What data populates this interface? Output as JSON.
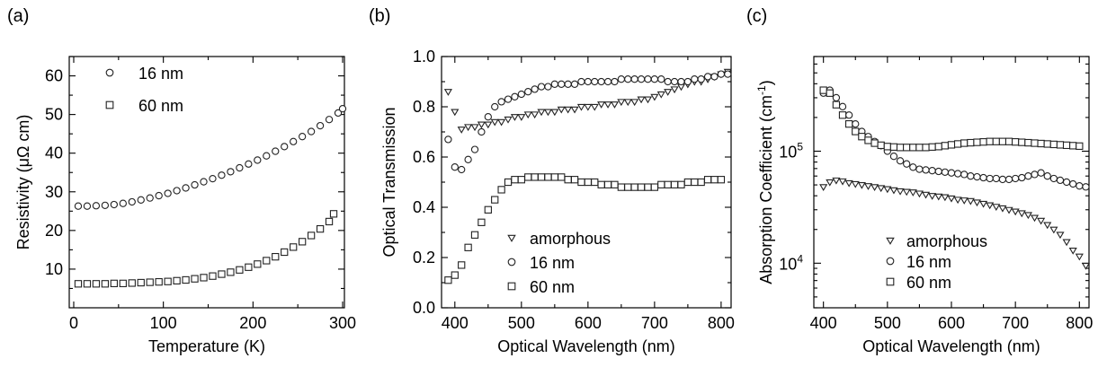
{
  "chart_data": [
    {
      "panel": "(a)",
      "type": "scatter",
      "xlabel": "Temperature (K)",
      "ylabel": "Resistivity (μΩ cm)",
      "xlim": [
        -5,
        302
      ],
      "ylim": [
        0,
        65
      ],
      "xticks": [
        0,
        100,
        200,
        300
      ],
      "yticks": [
        10,
        20,
        30,
        40,
        50,
        60
      ],
      "yscale": "linear",
      "legend_position": "top-left",
      "series": [
        {
          "name": "16 nm",
          "marker": "circle",
          "x": [
            5,
            15,
            25,
            35,
            45,
            55,
            65,
            75,
            85,
            95,
            105,
            115,
            125,
            135,
            145,
            155,
            165,
            175,
            185,
            195,
            205,
            215,
            225,
            235,
            245,
            255,
            265,
            275,
            285,
            295,
            300
          ],
          "y": [
            26.3,
            26.3,
            26.4,
            26.5,
            26.7,
            27.0,
            27.4,
            27.9,
            28.4,
            29.0,
            29.6,
            30.3,
            31.0,
            31.8,
            32.6,
            33.4,
            34.3,
            35.2,
            36.2,
            37.2,
            38.2,
            39.3,
            40.5,
            41.7,
            43.0,
            44.3,
            45.6,
            47.1,
            48.7,
            50.4,
            51.5
          ]
        },
        {
          "name": "60 nm",
          "marker": "square",
          "x": [
            5,
            15,
            25,
            35,
            45,
            55,
            65,
            75,
            85,
            95,
            105,
            115,
            125,
            135,
            145,
            155,
            165,
            175,
            185,
            195,
            205,
            215,
            225,
            235,
            245,
            255,
            265,
            275,
            285,
            290
          ],
          "y": [
            6.2,
            6.2,
            6.2,
            6.2,
            6.3,
            6.3,
            6.4,
            6.5,
            6.6,
            6.7,
            6.8,
            7.0,
            7.2,
            7.5,
            7.8,
            8.2,
            8.7,
            9.2,
            9.8,
            10.5,
            11.3,
            12.2,
            13.2,
            14.4,
            15.7,
            17.1,
            18.7,
            20.4,
            22.3,
            24.3
          ]
        }
      ]
    },
    {
      "panel": "(b)",
      "type": "scatter",
      "xlabel": "Optical Wavelength (nm)",
      "ylabel": "Optical Transmission",
      "xlim": [
        380,
        815
      ],
      "ylim": [
        0,
        1.0
      ],
      "xticks": [
        400,
        500,
        600,
        700,
        800
      ],
      "yticks": [
        0.0,
        0.2,
        0.4,
        0.6,
        0.8,
        1.0
      ],
      "yscale": "linear",
      "legend_position": "bottom-center",
      "series": [
        {
          "name": "amorphous",
          "marker": "triangle-down",
          "x": [
            390,
            400,
            410,
            420,
            430,
            440,
            450,
            460,
            470,
            480,
            490,
            500,
            510,
            520,
            530,
            540,
            550,
            560,
            570,
            580,
            590,
            600,
            610,
            620,
            630,
            640,
            650,
            660,
            670,
            680,
            690,
            700,
            710,
            720,
            730,
            740,
            750,
            760,
            770,
            780,
            790,
            800,
            810
          ],
          "y": [
            0.86,
            0.78,
            0.71,
            0.72,
            0.72,
            0.73,
            0.73,
            0.74,
            0.74,
            0.75,
            0.76,
            0.76,
            0.77,
            0.77,
            0.78,
            0.78,
            0.78,
            0.79,
            0.79,
            0.79,
            0.8,
            0.8,
            0.8,
            0.81,
            0.81,
            0.81,
            0.82,
            0.82,
            0.82,
            0.83,
            0.83,
            0.84,
            0.85,
            0.86,
            0.87,
            0.88,
            0.89,
            0.9,
            0.9,
            0.91,
            0.92,
            0.93,
            0.94
          ]
        },
        {
          "name": "16 nm",
          "marker": "circle",
          "x": [
            390,
            400,
            410,
            420,
            430,
            440,
            450,
            460,
            470,
            480,
            490,
            500,
            510,
            520,
            530,
            540,
            550,
            560,
            570,
            580,
            590,
            600,
            610,
            620,
            630,
            640,
            650,
            660,
            670,
            680,
            690,
            700,
            710,
            720,
            730,
            740,
            750,
            760,
            770,
            780,
            790,
            800,
            810
          ],
          "y": [
            0.67,
            0.56,
            0.55,
            0.59,
            0.63,
            0.7,
            0.76,
            0.8,
            0.82,
            0.83,
            0.84,
            0.85,
            0.86,
            0.87,
            0.88,
            0.88,
            0.89,
            0.89,
            0.89,
            0.89,
            0.9,
            0.9,
            0.9,
            0.9,
            0.9,
            0.9,
            0.91,
            0.91,
            0.91,
            0.91,
            0.91,
            0.91,
            0.91,
            0.9,
            0.9,
            0.9,
            0.9,
            0.91,
            0.91,
            0.92,
            0.92,
            0.93,
            0.93
          ]
        },
        {
          "name": "60 nm",
          "marker": "square",
          "x": [
            390,
            400,
            410,
            420,
            430,
            440,
            450,
            460,
            470,
            480,
            490,
            500,
            510,
            520,
            530,
            540,
            550,
            560,
            570,
            580,
            590,
            600,
            610,
            620,
            630,
            640,
            650,
            660,
            670,
            680,
            690,
            700,
            710,
            720,
            730,
            740,
            750,
            760,
            770,
            780,
            790,
            800
          ],
          "y": [
            0.11,
            0.13,
            0.17,
            0.24,
            0.29,
            0.34,
            0.39,
            0.43,
            0.47,
            0.5,
            0.51,
            0.51,
            0.52,
            0.52,
            0.52,
            0.52,
            0.52,
            0.52,
            0.51,
            0.51,
            0.5,
            0.5,
            0.5,
            0.49,
            0.49,
            0.49,
            0.48,
            0.48,
            0.48,
            0.48,
            0.48,
            0.48,
            0.49,
            0.49,
            0.49,
            0.49,
            0.5,
            0.5,
            0.5,
            0.51,
            0.51,
            0.51
          ]
        }
      ]
    },
    {
      "panel": "(c)",
      "type": "scatter",
      "xlabel": "Optical Wavelength (nm)",
      "ylabel": "Absorption Coefficient (cm",
      "ylabel_superscript": "-1",
      "ylabel_suffix": ")",
      "xlim": [
        385,
        815
      ],
      "ylim": [
        4000,
        700000
      ],
      "xticks": [
        400,
        500,
        600,
        700,
        800
      ],
      "yticks": [
        10000,
        100000
      ],
      "ytick_labels": [
        {
          "base": "10",
          "exp": "4"
        },
        {
          "base": "10",
          "exp": "5"
        }
      ],
      "yscale": "log",
      "legend_position": "bottom-right",
      "series": [
        {
          "name": "amorphous",
          "marker": "triangle-down",
          "x": [
            400,
            410,
            420,
            430,
            440,
            450,
            460,
            470,
            480,
            490,
            500,
            510,
            520,
            530,
            540,
            550,
            560,
            570,
            580,
            590,
            600,
            610,
            620,
            630,
            640,
            650,
            660,
            670,
            680,
            690,
            700,
            710,
            720,
            730,
            740,
            750,
            760,
            770,
            780,
            790,
            800,
            810
          ],
          "y": [
            48000,
            53000,
            55000,
            54000,
            52000,
            51000,
            50000,
            49000,
            48000,
            47000,
            46000,
            45000,
            44000,
            43500,
            43000,
            42000,
            41000,
            40000,
            39500,
            39000,
            38000,
            37000,
            36500,
            36000,
            35000,
            34000,
            33000,
            32000,
            31000,
            30000,
            29000,
            28000,
            27000,
            25500,
            24000,
            22000,
            20000,
            18000,
            15500,
            13000,
            11500,
            9500
          ]
        },
        {
          "name": "16 nm",
          "marker": "circle",
          "x": [
            400,
            410,
            420,
            430,
            440,
            450,
            460,
            470,
            480,
            490,
            500,
            510,
            520,
            530,
            540,
            550,
            560,
            570,
            580,
            590,
            600,
            610,
            620,
            630,
            640,
            650,
            660,
            670,
            680,
            690,
            700,
            710,
            720,
            730,
            740,
            750,
            760,
            770,
            780,
            790,
            800,
            810
          ],
          "y": [
            330000,
            350000,
            300000,
            250000,
            210000,
            175000,
            150000,
            135000,
            122000,
            112000,
            100000,
            90000,
            82000,
            77000,
            72000,
            69000,
            68000,
            67000,
            66000,
            65000,
            64000,
            63000,
            62000,
            60000,
            59000,
            58000,
            57000,
            57000,
            56000,
            56000,
            57000,
            58000,
            60000,
            62000,
            64000,
            60000,
            57000,
            55000,
            53000,
            51000,
            49000,
            48000
          ]
        },
        {
          "name": "60 nm",
          "marker": "square",
          "x": [
            400,
            410,
            420,
            430,
            440,
            450,
            460,
            470,
            480,
            490,
            500,
            510,
            520,
            530,
            540,
            550,
            560,
            570,
            580,
            590,
            600,
            610,
            620,
            630,
            640,
            650,
            660,
            670,
            680,
            690,
            700,
            710,
            720,
            730,
            740,
            750,
            760,
            770,
            780,
            790,
            800
          ],
          "y": [
            350000,
            330000,
            260000,
            210000,
            175000,
            150000,
            135000,
            125000,
            118000,
            113000,
            110000,
            109000,
            108000,
            108000,
            108000,
            108000,
            108000,
            109000,
            110000,
            112000,
            114000,
            116000,
            118000,
            119000,
            120000,
            121000,
            122000,
            122000,
            122000,
            122000,
            121000,
            120000,
            119000,
            118000,
            117000,
            116000,
            115000,
            114000,
            113000,
            112000,
            111000
          ]
        }
      ]
    }
  ]
}
